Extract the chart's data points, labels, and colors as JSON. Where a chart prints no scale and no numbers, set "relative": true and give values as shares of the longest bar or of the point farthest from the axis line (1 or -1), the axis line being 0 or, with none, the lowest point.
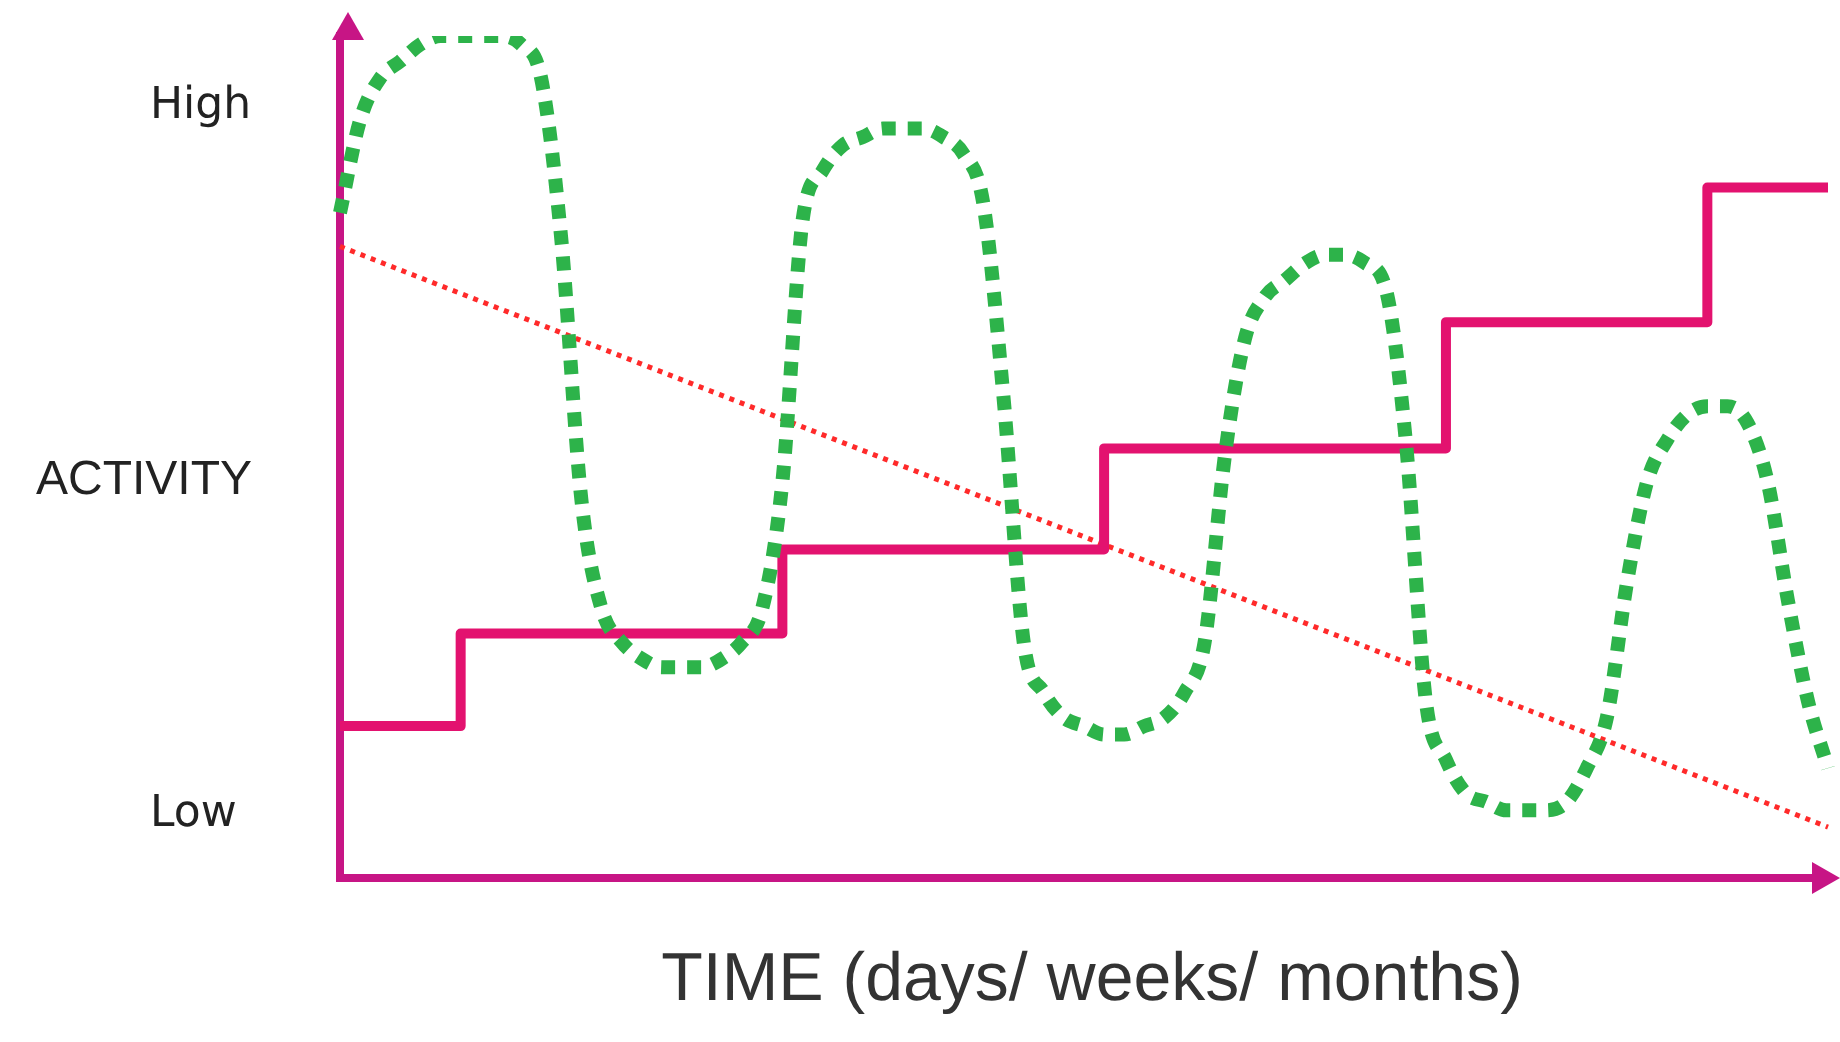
{
  "chart_data": {
    "type": "line",
    "relative": true,
    "xlabel": "TIME (days/ weeks/ months)",
    "ylabel": "ACTIVITY",
    "annotations": [
      "High",
      "Low"
    ],
    "grid": false,
    "legend": false,
    "marker": "none",
    "categories": [
      null,
      null,
      null,
      null,
      null,
      null,
      null,
      null,
      null,
      null,
      null,
      null,
      null,
      null,
      null,
      null,
      null,
      null,
      null,
      null,
      null,
      null,
      null,
      null,
      null,
      null,
      null,
      null,
      null,
      null,
      null,
      null,
      null,
      null,
      null,
      null,
      null,
      null,
      null,
      null,
      null,
      null,
      null,
      null,
      null,
      null,
      null,
      null,
      null,
      null,
      null,
      null,
      null,
      null,
      null,
      null,
      null,
      null,
      null,
      null,
      null,
      null,
      null,
      null,
      null,
      null,
      null,
      null,
      null,
      null,
      null,
      null,
      null,
      null,
      null
    ],
    "series": [
      {
        "type": "line",
        "line_style": "dotted",
        "color": "#2db34a",
        "values": [
          0.79,
          0.9,
          0.95,
          0.97,
          0.99,
          1.0,
          1,
          1,
          1,
          0.99,
          0.95,
          0.76,
          0.45,
          0.32,
          0.28,
          0.26,
          0.25,
          0.25,
          0.25,
          0.26,
          0.28,
          0.32,
          0.47,
          0.78,
          0.84,
          0.87,
          0.88,
          0.89,
          0.89,
          0.89,
          0.88,
          0.86,
          0.8,
          0.57,
          0.28,
          0.22,
          0.19,
          0.18,
          0.17,
          0.17,
          0.18,
          0.19,
          0.22,
          0.28,
          0.5,
          0.64,
          0.69,
          0.71,
          0.73,
          0.74,
          0.74,
          0.73,
          0.7,
          0.52,
          0.21,
          0.14,
          0.1,
          0.09,
          0.08,
          0.08,
          0.08,
          0.09,
          0.13,
          0.19,
          0.35,
          0.47,
          0.52,
          0.55,
          0.56,
          0.56,
          0.54,
          0.47,
          0.33,
          0.21,
          0.13
        ]
      },
      {
        "type": "step",
        "line_style": "solid",
        "color": "#e3126f",
        "values": [
          0.18,
          0.18,
          0.18,
          0.18,
          0.18,
          0.18,
          0.18,
          0.29,
          0.29,
          0.29,
          0.29,
          0.29,
          0.29,
          0.29,
          0.29,
          0.29,
          0.29,
          0.29,
          0.29,
          0.29,
          0.29,
          0.29,
          0.29,
          0.39,
          0.39,
          0.39,
          0.39,
          0.39,
          0.39,
          0.39,
          0.39,
          0.39,
          0.39,
          0.39,
          0.39,
          0.39,
          0.39,
          0.39,
          0.39,
          0.51,
          0.51,
          0.51,
          0.51,
          0.51,
          0.51,
          0.51,
          0.51,
          0.51,
          0.51,
          0.51,
          0.51,
          0.51,
          0.51,
          0.51,
          0.51,
          0.51,
          0.66,
          0.66,
          0.66,
          0.66,
          0.66,
          0.66,
          0.66,
          0.66,
          0.66,
          0.66,
          0.66,
          0.66,
          0.66,
          0.82,
          0.82,
          0.82,
          0.82,
          0.82,
          0.82
        ]
      },
      {
        "type": "line",
        "line_style": "dotted",
        "color": "#ff2a2a",
        "values": [
          0.75,
          null,
          null,
          null,
          null,
          null,
          null,
          null,
          null,
          null,
          null,
          null,
          null,
          null,
          null,
          null,
          null,
          null,
          null,
          null,
          null,
          null,
          null,
          null,
          null,
          null,
          null,
          null,
          null,
          null,
          null,
          null,
          null,
          null,
          null,
          null,
          null,
          null,
          null,
          null,
          null,
          null,
          null,
          null,
          null,
          null,
          null,
          null,
          null,
          null,
          null,
          null,
          null,
          null,
          null,
          null,
          null,
          null,
          null,
          null,
          null,
          null,
          null,
          null,
          null,
          null,
          null,
          null,
          null,
          null,
          null,
          null,
          null,
          null,
          0.06
        ]
      }
    ]
  }
}
